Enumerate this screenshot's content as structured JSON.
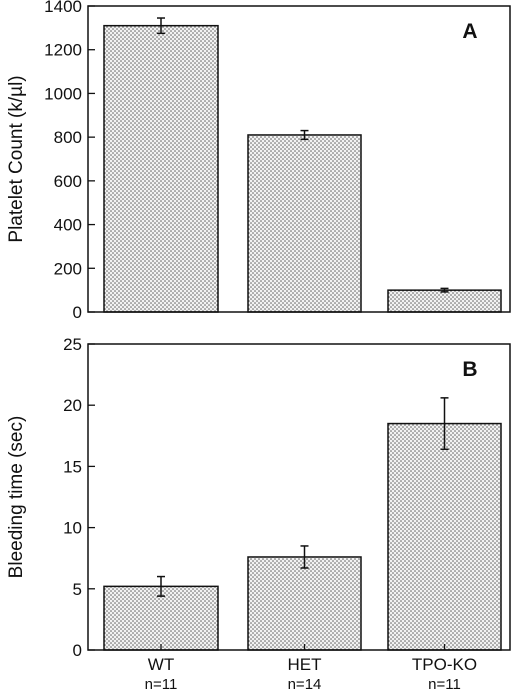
{
  "chart_data": [
    {
      "type": "bar",
      "panel_label": "A",
      "categories": [
        "WT",
        "HET",
        "TPO-KO"
      ],
      "values": [
        1310,
        810,
        100
      ],
      "errors": [
        35,
        20,
        8
      ],
      "ylabel": "Platelet Count (k/µl)",
      "ylim": [
        0,
        1400
      ],
      "yticks": [
        0,
        200,
        400,
        600,
        800,
        1000,
        1200,
        1400
      ],
      "show_x_tick_labels": false,
      "bar_fill": "dotted light gray"
    },
    {
      "type": "bar",
      "panel_label": "B",
      "categories": [
        "WT",
        "HET",
        "TPO-KO"
      ],
      "category_n": [
        "n=11",
        "n=14",
        "n=11"
      ],
      "values": [
        5.2,
        7.6,
        18.5
      ],
      "errors": [
        0.8,
        0.9,
        2.1
      ],
      "ylabel": "Bleeding time (sec)",
      "ylim": [
        0,
        25
      ],
      "yticks": [
        0,
        5,
        10,
        15,
        20,
        25
      ],
      "show_x_tick_labels": true,
      "bar_fill": "dotted light gray"
    }
  ]
}
